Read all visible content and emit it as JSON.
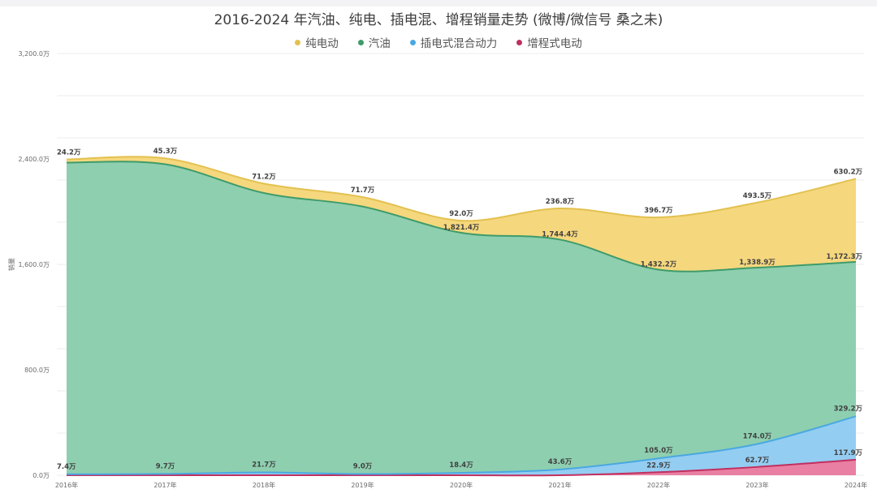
{
  "chart_data": {
    "type": "area",
    "stacked": true,
    "title": "2016-2024 年汽油、纯电、插电混、增程销量走势 (微博/微信号 桑之未)",
    "ylabel": "销量",
    "categories": [
      "2016年",
      "2017年",
      "2018年",
      "2019年",
      "2020年",
      "2021年",
      "2022年",
      "2023年",
      "2024年"
    ],
    "ylim": [
      0,
      3200
    ],
    "yticks": [
      "0.0万",
      "800.0万",
      "1,600.0万",
      "2,400.0万",
      "3,200.0万"
    ],
    "ytick_values": [
      0,
      800,
      1600,
      2400,
      3200
    ],
    "legend_position": "top",
    "grid": true,
    "series": [
      {
        "name": "纯电动",
        "color": "#f5d77e",
        "values": [
          24.2,
          45.3,
          71.2,
          71.7,
          92.0,
          236.8,
          396.7,
          493.5,
          630.2
        ],
        "labels": [
          "24.2万",
          "45.3万",
          "71.2万",
          "71.7万",
          "92.0万",
          "236.8万",
          "396.7万",
          "493.5万",
          "630.2万"
        ]
      },
      {
        "name": "汽油",
        "color": "#8ecfb0",
        "values": [
          2365,
          2350,
          2120,
          2030,
          1821.4,
          1744.4,
          1432.2,
          1338.9,
          1172.3
        ],
        "labels": [
          "",
          "",
          "",
          "",
          "1,821.4万",
          "1,744.4万",
          "1,432.2万",
          "1,338.9万",
          "1,172.3万"
        ]
      },
      {
        "name": "插电式混合动力",
        "color": "#94cdf2",
        "values": [
          7.4,
          9.7,
          21.7,
          9.0,
          18.4,
          43.6,
          105.0,
          174.0,
          329.2
        ],
        "labels": [
          "7.4万",
          "9.7万",
          "21.7万",
          "9.0万",
          "18.4万",
          "43.6万",
          "105.0万",
          "174.0万",
          "329.2万"
        ]
      },
      {
        "name": "增程式电动",
        "color": "#e97fa3",
        "values": [
          0,
          0,
          0,
          0,
          0,
          0,
          22.9,
          62.7,
          117.9
        ],
        "labels": [
          "",
          "",
          "",
          "",
          "",
          "",
          "22.9万",
          "62.7万",
          "117.9万"
        ]
      }
    ]
  }
}
